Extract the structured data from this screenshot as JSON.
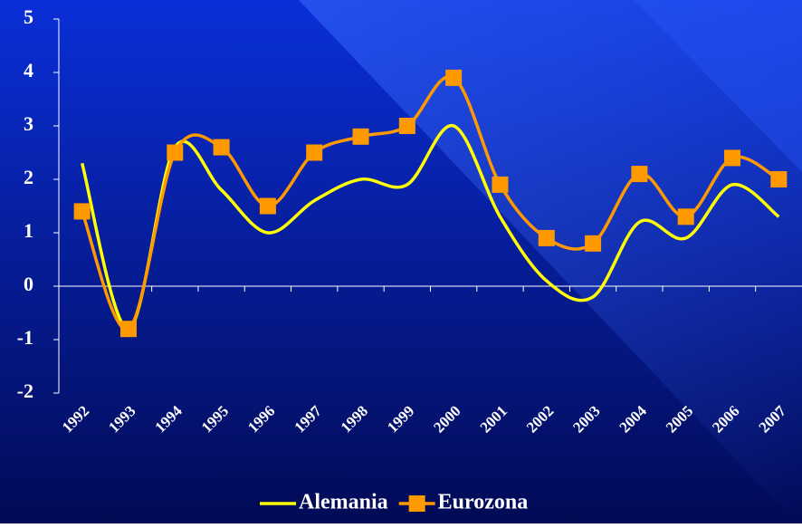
{
  "chart_data": {
    "type": "line",
    "categories": [
      "1992",
      "1993",
      "1994",
      "1995",
      "1996",
      "1997",
      "1998",
      "1999",
      "2000",
      "2001",
      "2002",
      "2003",
      "2004",
      "2005",
      "2006",
      "2007"
    ],
    "series": [
      {
        "name": "Alemania",
        "color": "#ffff00",
        "marker": "none",
        "values": [
          2.3,
          -0.8,
          2.6,
          1.8,
          1.0,
          1.6,
          2.0,
          1.9,
          3.0,
          1.3,
          0.1,
          -0.2,
          1.2,
          0.9,
          1.9,
          1.3
        ]
      },
      {
        "name": "Eurozona",
        "color": "#ff9900",
        "marker": "square",
        "values": [
          1.4,
          -0.8,
          2.5,
          2.6,
          1.5,
          2.5,
          2.8,
          3.0,
          3.9,
          1.9,
          0.9,
          0.8,
          2.1,
          1.3,
          2.4,
          2.0
        ]
      }
    ],
    "ylim": [
      -2,
      5
    ],
    "yticks": [
      -2,
      -1,
      0,
      1,
      2,
      3,
      4,
      5
    ],
    "grid": false,
    "smooth": true,
    "legend": "bottom"
  }
}
